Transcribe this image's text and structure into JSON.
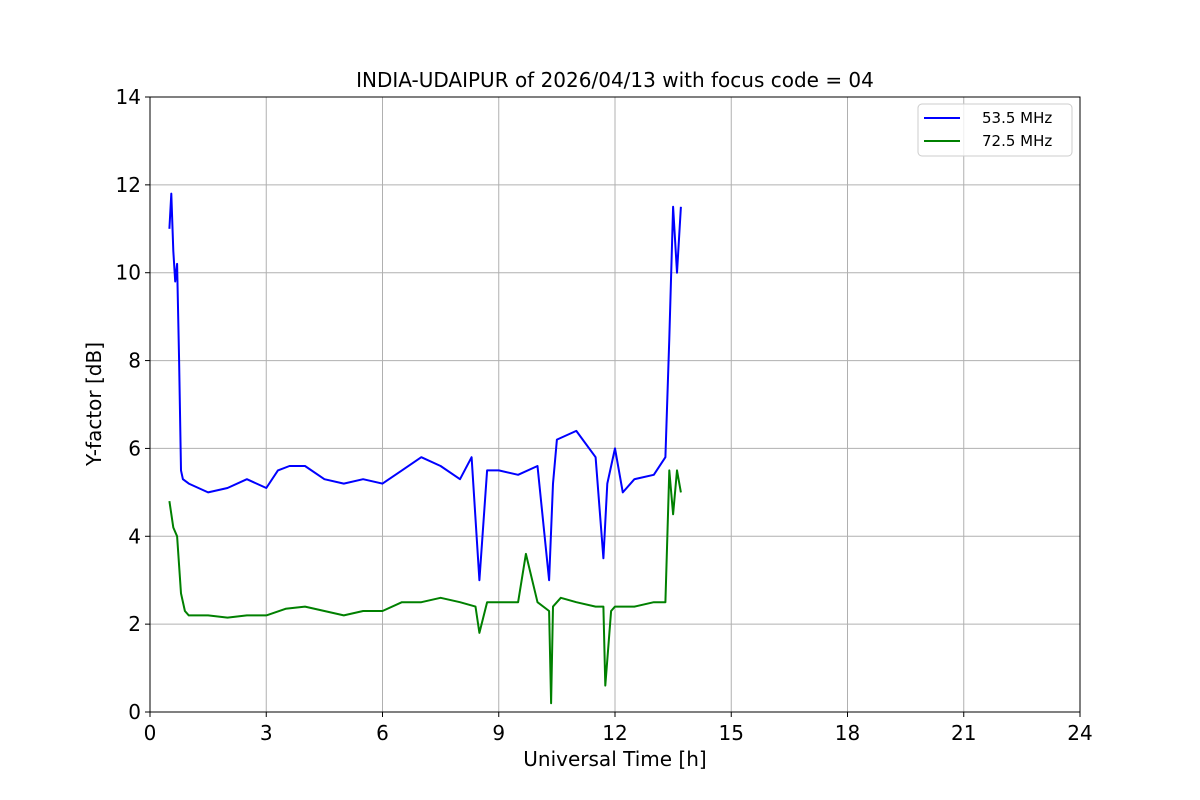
{
  "chart_data": {
    "type": "line",
    "title": "INDIA-UDAIPUR of 2026/04/13 with focus code = 04",
    "xlabel": "Universal Time [h]",
    "ylabel": "Y-factor [dB]",
    "xlim": [
      0,
      24
    ],
    "ylim": [
      0,
      14
    ],
    "xticks": [
      0,
      3,
      6,
      9,
      12,
      15,
      18,
      21,
      24
    ],
    "yticks": [
      0,
      2,
      4,
      6,
      8,
      10,
      12,
      14
    ],
    "grid": true,
    "legend_position": "top-right",
    "series": [
      {
        "name": "53.5 MHz",
        "color": "#0000ff",
        "x": [
          0.5,
          0.55,
          0.6,
          0.65,
          0.7,
          0.75,
          0.8,
          0.85,
          1.0,
          1.5,
          2.0,
          2.5,
          3.0,
          3.3,
          3.6,
          4.0,
          4.5,
          5.0,
          5.5,
          6.0,
          6.5,
          7.0,
          7.5,
          8.0,
          8.3,
          8.5,
          8.7,
          9.0,
          9.5,
          10.0,
          10.3,
          10.4,
          10.5,
          11.0,
          11.5,
          11.7,
          11.8,
          12.0,
          12.2,
          12.5,
          13.0,
          13.3,
          13.4,
          13.5,
          13.6,
          13.7
        ],
        "y": [
          11.0,
          11.8,
          10.5,
          9.8,
          10.2,
          8.0,
          5.5,
          5.3,
          5.2,
          5.0,
          5.1,
          5.3,
          5.1,
          5.5,
          5.6,
          5.6,
          5.3,
          5.2,
          5.3,
          5.2,
          5.5,
          5.8,
          5.6,
          5.3,
          5.8,
          3.0,
          5.5,
          5.5,
          5.4,
          5.6,
          3.0,
          5.2,
          6.2,
          6.4,
          5.8,
          3.5,
          5.2,
          6.0,
          5.0,
          5.3,
          5.4,
          5.8,
          8.5,
          11.5,
          10.0,
          11.5
        ]
      },
      {
        "name": "72.5 MHz",
        "color": "#008000",
        "x": [
          0.5,
          0.6,
          0.7,
          0.8,
          0.9,
          1.0,
          1.5,
          2.0,
          2.5,
          3.0,
          3.5,
          4.0,
          4.5,
          5.0,
          5.5,
          6.0,
          6.5,
          7.0,
          7.5,
          8.0,
          8.4,
          8.5,
          8.7,
          9.0,
          9.5,
          9.7,
          10.0,
          10.3,
          10.35,
          10.4,
          10.6,
          11.0,
          11.5,
          11.7,
          11.75,
          11.9,
          12.0,
          12.5,
          13.0,
          13.3,
          13.4,
          13.5,
          13.6,
          13.7
        ],
        "y": [
          4.8,
          4.2,
          4.0,
          2.7,
          2.3,
          2.2,
          2.2,
          2.15,
          2.2,
          2.2,
          2.35,
          2.4,
          2.3,
          2.2,
          2.3,
          2.3,
          2.5,
          2.5,
          2.6,
          2.5,
          2.4,
          1.8,
          2.5,
          2.5,
          2.5,
          3.6,
          2.5,
          2.3,
          0.2,
          2.4,
          2.6,
          2.5,
          2.4,
          2.4,
          0.6,
          2.3,
          2.4,
          2.4,
          2.5,
          2.5,
          5.5,
          4.5,
          5.5,
          5.0
        ]
      }
    ]
  }
}
